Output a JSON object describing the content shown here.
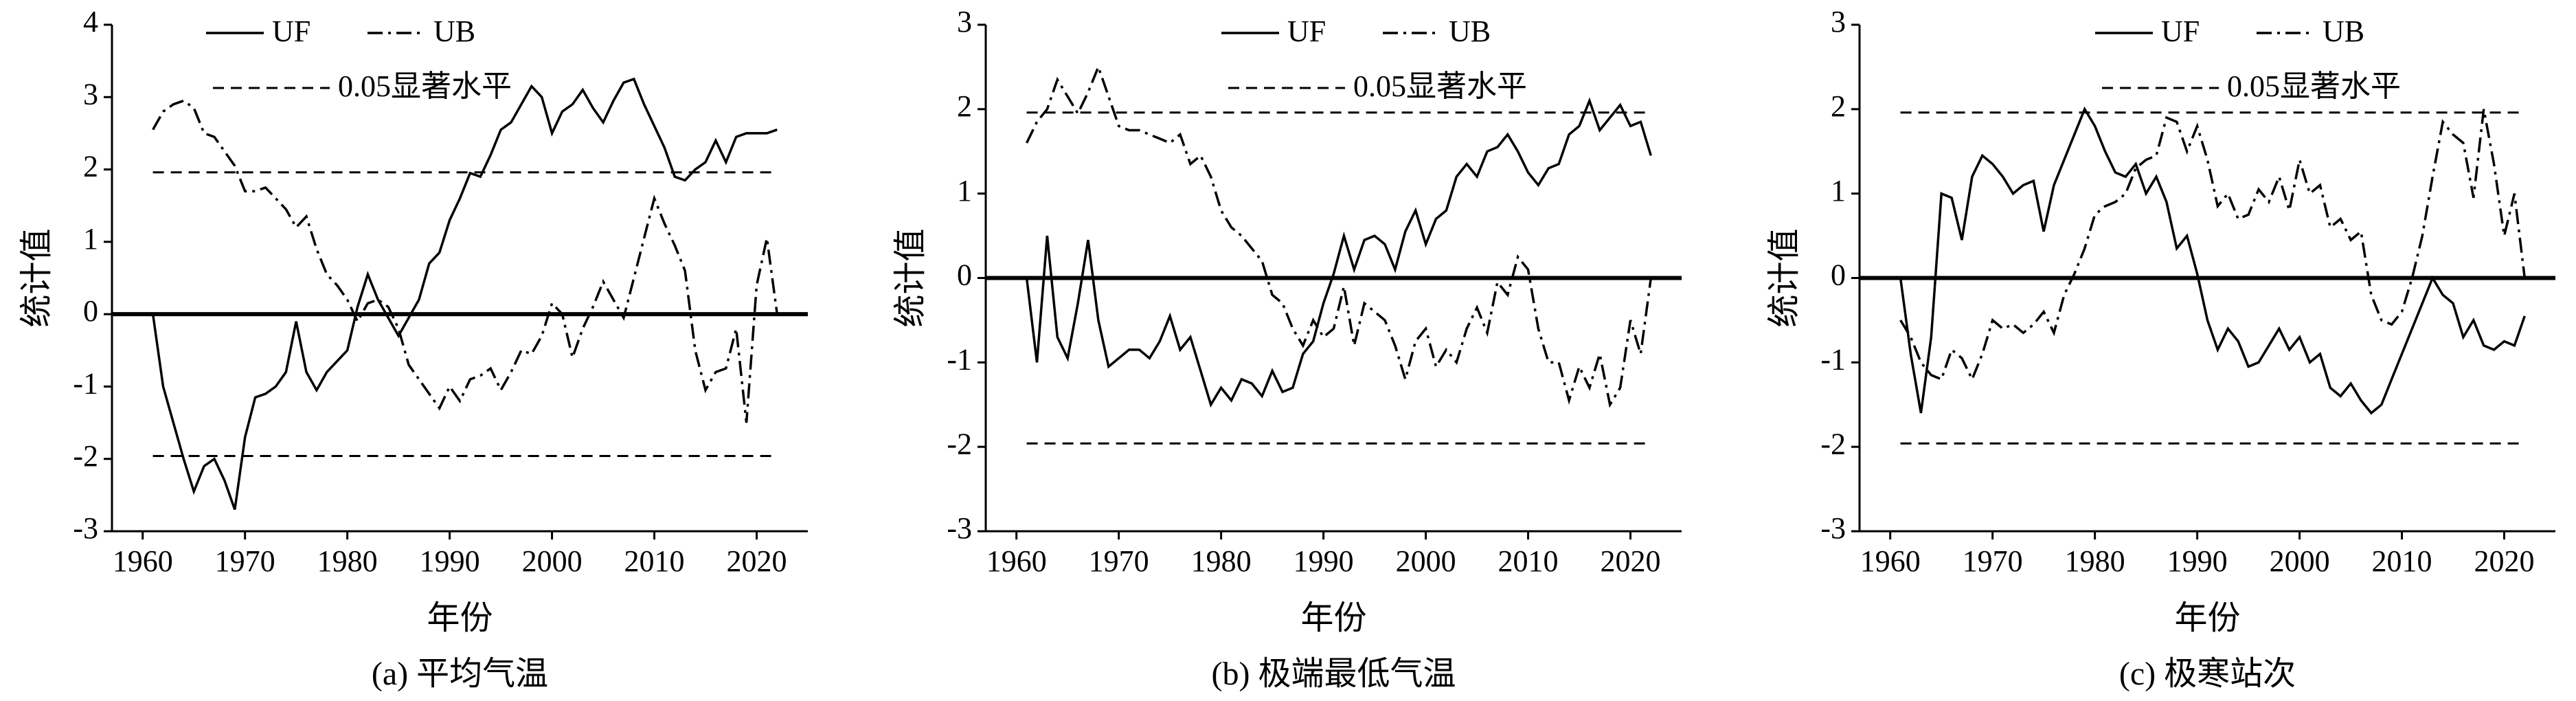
{
  "chart_data": [
    {
      "type": "line",
      "caption": "(a) 平均气温",
      "xlabel": "年份",
      "ylabel": "统计值",
      "x": [
        1961,
        1962,
        1963,
        1964,
        1965,
        1966,
        1967,
        1968,
        1969,
        1970,
        1971,
        1972,
        1973,
        1974,
        1975,
        1976,
        1977,
        1978,
        1979,
        1980,
        1981,
        1982,
        1983,
        1984,
        1985,
        1986,
        1987,
        1988,
        1989,
        1990,
        1991,
        1992,
        1993,
        1994,
        1995,
        1996,
        1997,
        1998,
        1999,
        2000,
        2001,
        2002,
        2003,
        2004,
        2005,
        2006,
        2007,
        2008,
        2009,
        2010,
        2011,
        2012,
        2013,
        2014,
        2015,
        2016,
        2017,
        2018,
        2019,
        2020,
        2021,
        2022
      ],
      "series": [
        {
          "name": "UF",
          "color": "#000000",
          "style": "solid",
          "values": [
            0,
            -1.0,
            -1.5,
            -2.0,
            -2.45,
            -2.1,
            -2.0,
            -2.3,
            -2.7,
            -1.7,
            -1.15,
            -1.1,
            -1.0,
            -0.8,
            -0.1,
            -0.8,
            -1.05,
            -0.8,
            -0.65,
            -0.5,
            0.1,
            0.55,
            0.2,
            -0.05,
            -0.3,
            -0.05,
            0.2,
            0.7,
            0.85,
            1.3,
            1.6,
            1.95,
            1.9,
            2.2,
            2.55,
            2.65,
            2.9,
            3.15,
            3.0,
            2.5,
            2.8,
            2.9,
            3.1,
            2.85,
            2.65,
            2.95,
            3.2,
            3.25,
            2.9,
            2.6,
            2.3,
            1.9,
            1.85,
            2.0,
            2.1,
            2.4,
            2.1,
            2.45,
            2.5,
            2.5,
            2.5,
            2.55
          ]
        },
        {
          "name": "UB",
          "color": "#000000",
          "style": "dashdot",
          "values": [
            2.55,
            2.8,
            2.9,
            2.95,
            2.85,
            2.5,
            2.45,
            2.25,
            2.05,
            1.7,
            1.7,
            1.75,
            1.6,
            1.45,
            1.2,
            1.35,
            0.9,
            0.55,
            0.4,
            0.2,
            -0.1,
            0.15,
            0.2,
            0.1,
            -0.2,
            -0.7,
            -0.9,
            -1.1,
            -1.3,
            -1.0,
            -1.2,
            -0.9,
            -0.85,
            -0.75,
            -1.05,
            -0.8,
            -0.5,
            -0.55,
            -0.3,
            0.15,
            0.0,
            -0.6,
            -0.2,
            0.1,
            0.45,
            0.2,
            -0.05,
            0.5,
            1.05,
            1.6,
            1.25,
            0.95,
            0.6,
            -0.5,
            -1.05,
            -0.8,
            -0.75,
            -0.2,
            -1.5,
            0.4,
            1.05,
            0
          ]
        }
      ],
      "significance": {
        "name": "0.05显著水平",
        "values": [
          1.96,
          -1.96
        ]
      },
      "xlim": [
        1957,
        2025
      ],
      "xticks": [
        1960,
        1970,
        1980,
        1990,
        2000,
        2010,
        2020
      ],
      "ylim": [
        -3,
        4
      ],
      "yticks": [
        -3,
        -2,
        -1,
        0,
        1,
        2,
        3,
        4
      ]
    },
    {
      "type": "line",
      "caption": "(b) 极端最低气温",
      "xlabel": "年份",
      "ylabel": "统计值",
      "x": [
        1961,
        1962,
        1963,
        1964,
        1965,
        1966,
        1967,
        1968,
        1969,
        1970,
        1971,
        1972,
        1973,
        1974,
        1975,
        1976,
        1977,
        1978,
        1979,
        1980,
        1981,
        1982,
        1983,
        1984,
        1985,
        1986,
        1987,
        1988,
        1989,
        1990,
        1991,
        1992,
        1993,
        1994,
        1995,
        1996,
        1997,
        1998,
        1999,
        2000,
        2001,
        2002,
        2003,
        2004,
        2005,
        2006,
        2007,
        2008,
        2009,
        2010,
        2011,
        2012,
        2013,
        2014,
        2015,
        2016,
        2017,
        2018,
        2019,
        2020,
        2021,
        2022
      ],
      "series": [
        {
          "name": "UF",
          "color": "#000000",
          "style": "solid",
          "values": [
            0,
            -1.0,
            0.5,
            -0.7,
            -0.95,
            -0.3,
            0.45,
            -0.5,
            -1.05,
            -0.95,
            -0.85,
            -0.85,
            -0.95,
            -0.75,
            -0.45,
            -0.85,
            -0.7,
            -1.1,
            -1.5,
            -1.3,
            -1.45,
            -1.2,
            -1.25,
            -1.4,
            -1.1,
            -1.35,
            -1.3,
            -0.9,
            -0.75,
            -0.3,
            0.05,
            0.5,
            0.1,
            0.45,
            0.5,
            0.4,
            0.1,
            0.55,
            0.8,
            0.4,
            0.7,
            0.8,
            1.2,
            1.35,
            1.2,
            1.5,
            1.55,
            1.7,
            1.5,
            1.25,
            1.1,
            1.3,
            1.35,
            1.7,
            1.8,
            2.1,
            1.75,
            1.9,
            2.05,
            1.8,
            1.85,
            1.45
          ]
        },
        {
          "name": "UB",
          "color": "#000000",
          "style": "dashdot",
          "values": [
            1.6,
            1.85,
            2.0,
            2.35,
            2.15,
            1.95,
            2.2,
            2.5,
            2.15,
            1.8,
            1.75,
            1.75,
            1.7,
            1.65,
            1.6,
            1.7,
            1.35,
            1.45,
            1.2,
            0.8,
            0.6,
            0.5,
            0.35,
            0.2,
            -0.2,
            -0.3,
            -0.6,
            -0.8,
            -0.5,
            -0.7,
            -0.6,
            -0.1,
            -0.8,
            -0.3,
            -0.4,
            -0.5,
            -0.8,
            -1.2,
            -0.75,
            -0.6,
            -1.05,
            -0.85,
            -1.0,
            -0.6,
            -0.35,
            -0.65,
            -0.05,
            -0.2,
            0.25,
            0.1,
            -0.6,
            -1.0,
            -1.0,
            -1.45,
            -1.05,
            -1.3,
            -0.9,
            -1.5,
            -1.3,
            -0.5,
            -0.9,
            0
          ]
        }
      ],
      "significance": {
        "name": "0.05显著水平",
        "values": [
          1.96,
          -1.96
        ]
      },
      "xlim": [
        1957,
        2025
      ],
      "xticks": [
        1960,
        1970,
        1980,
        1990,
        2000,
        2010,
        2020
      ],
      "ylim": [
        -3,
        3
      ],
      "yticks": [
        -3,
        -2,
        -1,
        0,
        1,
        2,
        3
      ]
    },
    {
      "type": "line",
      "caption": "(c) 极寒站次",
      "xlabel": "年份",
      "ylabel": "统计值",
      "x": [
        1961,
        1962,
        1963,
        1964,
        1965,
        1966,
        1967,
        1968,
        1969,
        1970,
        1971,
        1972,
        1973,
        1974,
        1975,
        1976,
        1977,
        1978,
        1979,
        1980,
        1981,
        1982,
        1983,
        1984,
        1985,
        1986,
        1987,
        1988,
        1989,
        1990,
        1991,
        1992,
        1993,
        1994,
        1995,
        1996,
        1997,
        1998,
        1999,
        2000,
        2001,
        2002,
        2003,
        2004,
        2005,
        2006,
        2007,
        2008,
        2009,
        2010,
        2011,
        2012,
        2013,
        2014,
        2015,
        2016,
        2017,
        2018,
        2019,
        2020,
        2021,
        2022
      ],
      "series": [
        {
          "name": "UF",
          "color": "#000000",
          "style": "solid",
          "values": [
            0,
            -0.9,
            -1.6,
            -0.7,
            1.0,
            0.95,
            0.45,
            1.2,
            1.45,
            1.35,
            1.2,
            1.0,
            1.1,
            1.15,
            0.55,
            1.1,
            1.4,
            1.7,
            2.0,
            1.8,
            1.5,
            1.25,
            1.2,
            1.35,
            1.0,
            1.2,
            0.9,
            0.35,
            0.5,
            0.05,
            -0.5,
            -0.85,
            -0.6,
            -0.75,
            -1.05,
            -1.0,
            -0.8,
            -0.6,
            -0.85,
            -0.7,
            -1.0,
            -0.9,
            -1.3,
            -1.4,
            -1.25,
            -1.45,
            -1.6,
            -1.5,
            -1.2,
            -0.9,
            -0.6,
            -0.3,
            0.0,
            -0.2,
            -0.3,
            -0.7,
            -0.5,
            -0.8,
            -0.85,
            -0.75,
            -0.8,
            -0.45
          ]
        },
        {
          "name": "UB",
          "color": "#000000",
          "style": "dashdot",
          "values": [
            -0.5,
            -0.7,
            -1.0,
            -1.15,
            -1.2,
            -0.85,
            -0.95,
            -1.2,
            -0.9,
            -0.5,
            -0.6,
            -0.55,
            -0.65,
            -0.55,
            -0.4,
            -0.65,
            -0.2,
            0.05,
            0.35,
            0.75,
            0.85,
            0.9,
            1.0,
            1.3,
            1.4,
            1.45,
            1.9,
            1.85,
            1.5,
            1.8,
            1.4,
            0.85,
            1.0,
            0.7,
            0.75,
            1.05,
            0.9,
            1.2,
            0.8,
            1.4,
            1.0,
            1.1,
            0.6,
            0.7,
            0.45,
            0.55,
            -0.2,
            -0.5,
            -0.55,
            -0.4,
            0.0,
            0.5,
            1.2,
            1.85,
            1.7,
            1.6,
            0.95,
            2.0,
            1.35,
            0.5,
            1.0,
            0
          ]
        }
      ],
      "significance": {
        "name": "0.05显著水平",
        "values": [
          1.96,
          -1.96
        ]
      },
      "xlim": [
        1957,
        2025
      ],
      "xticks": [
        1960,
        1970,
        1980,
        1990,
        2000,
        2010,
        2020
      ],
      "ylim": [
        -3,
        3
      ],
      "yticks": [
        -3,
        -2,
        -1,
        0,
        1,
        2,
        3
      ]
    }
  ]
}
